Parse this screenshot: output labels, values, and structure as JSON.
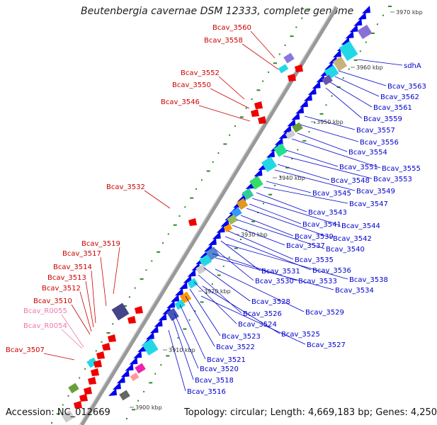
{
  "title": "Beutenbergia cavernae DSM 12333, complete genome",
  "accession": "Accession: NC_012669",
  "topology": "Topology: circular; Length: 4,669,183 bp; Genes: 4,250",
  "kbp_ticks": [
    "3970 kbp",
    "3960 kbp",
    "3950 kbp",
    "3940 kbp",
    "3930 kbp",
    "3920 kbp",
    "3910 kbp",
    "3900 kbp"
  ],
  "left_labels": [
    "Bcav_3560",
    "Bcav_3558",
    "Bcav_3552",
    "Bcav_3550",
    "Bcav_3546",
    "Bcav_3532",
    "Bcav_3519",
    "Bcav_3517",
    "Bcav_3514",
    "Bcav_3513",
    "Bcav_3512",
    "Bcav_3510",
    "Bcav_R0055",
    "Bcav_R0054",
    "Bcav_3507"
  ],
  "right_labels": [
    "sdhA",
    "Bcav_3563",
    "Bcav_3562",
    "Bcav_3561",
    "Bcav_3559",
    "Bcav_3557",
    "Bcav_3556",
    "Bcav_3554",
    "Bcav_3555",
    "Bcav_3551",
    "Bcav_3553",
    "Bcav_3548",
    "Bcav_3549",
    "Bcav_3545",
    "Bcav_3547",
    "Bcav_3543",
    "Bcav_3544",
    "Bcav_3541",
    "Bcav_3542",
    "Bcav_3539",
    "Bcav_3540",
    "Bcav_3537",
    "Bcav_3535",
    "Bcav_3536",
    "Bcav_3531",
    "Bcav_3538",
    "Bcav_3530",
    "Bcav_3533",
    "Bcav_3534",
    "Bcav_3528",
    "Bcav_3529",
    "Bcav_3526",
    "Bcav_3524",
    "Bcav_3525",
    "Bcav_3523",
    "Bcav_3527",
    "Bcav_3522",
    "Bcav_3521",
    "Bcav_3520",
    "Bcav_3518",
    "Bcav_3516"
  ],
  "colors": {
    "forward_gene": "#0000ee",
    "reverse_gene": "#ee0000",
    "rna": "#ee88aa",
    "backbone": "#999999",
    "left_label": "#cc0000",
    "right_label": "#0000cc",
    "rna_label": "#ee77aa"
  }
}
